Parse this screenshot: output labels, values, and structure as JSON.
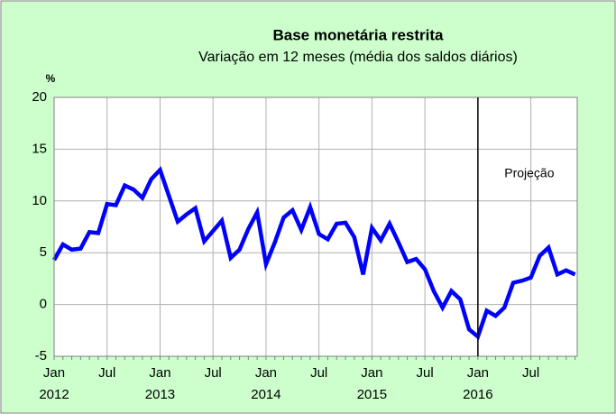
{
  "chart_data": {
    "type": "line",
    "title": "Base monetária restrita",
    "subtitle": "Variação em 12 meses (média dos saldos diários)",
    "y_label": "%",
    "categories": [
      "Jan",
      null,
      null,
      null,
      null,
      null,
      "Jul",
      null,
      null,
      null,
      null,
      null,
      "Jan",
      null,
      null,
      null,
      null,
      null,
      "Jul",
      null,
      null,
      null,
      null,
      null,
      "Jan",
      null,
      null,
      null,
      null,
      null,
      "Jul",
      null,
      null,
      null,
      null,
      null,
      "Jan",
      null,
      null,
      null,
      null,
      null,
      "Jul",
      null,
      null,
      null,
      null,
      null,
      "Jan",
      null,
      null,
      null,
      null,
      null,
      "Jul",
      null,
      null,
      null,
      null,
      null
    ],
    "x_groups": [
      "2012",
      "2013",
      "2014",
      "2015",
      "2016"
    ],
    "series": [
      {
        "name": "Base monetária restrita",
        "color": "#0000ff",
        "values": [
          4.3,
          5.8,
          5.3,
          5.4,
          7.0,
          6.9,
          9.7,
          9.6,
          11.5,
          11.1,
          10.3,
          12.1,
          13.0,
          10.5,
          8.0,
          8.7,
          9.3,
          6.1,
          7.1,
          8.1,
          4.5,
          5.3,
          7.3,
          8.9,
          3.9,
          6.0,
          8.4,
          9.1,
          7.2,
          9.4,
          6.8,
          6.3,
          7.8,
          7.9,
          6.5,
          2.9,
          7.4,
          6.2,
          7.8,
          6.0,
          4.1,
          4.4,
          3.4,
          1.3,
          -0.3,
          1.3,
          0.5,
          -2.4,
          -3.1,
          -0.6,
          -1.1,
          -0.3,
          2.1,
          2.3,
          2.6,
          4.7,
          5.5,
          2.9,
          3.3,
          2.9
        ]
      }
    ],
    "ylim": [
      -5,
      20
    ],
    "yticks": [
      -5,
      0,
      5,
      10,
      15,
      20
    ],
    "grid": true,
    "annotation": {
      "text": "Projeção",
      "from_group": "2016"
    }
  }
}
